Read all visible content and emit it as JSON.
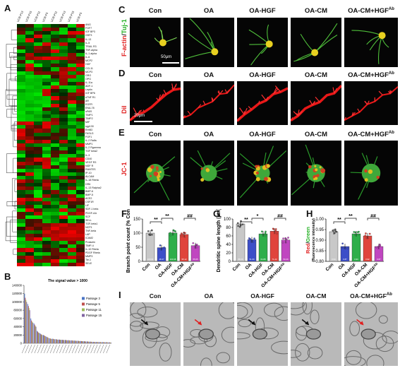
{
  "panels": {
    "A": "A",
    "B": "B",
    "C": "C",
    "D": "D",
    "E": "E",
    "F": "F",
    "G": "G",
    "H": "H",
    "I": "I"
  },
  "heatmap": {
    "columns": [
      "UCB-P13",
      "UCB-P15",
      "UCB-P11",
      "UCB-P5",
      "UCB-P11",
      "UCB-P13",
      "UCB-P15",
      "UCB-P5"
    ],
    "genes": [
      "ANG",
      "FGF7",
      "IGF BP3",
      "GSF3",
      "IL-13",
      "IL-5",
      "TRAIL R3",
      "TNF-alpha",
      "IL-1 alpha",
      "IL-6",
      "MCP2",
      "HGF",
      "CCL11",
      "MCP3",
      "GRO",
      "OPG",
      "IL-11a",
      "ADF-1",
      "Leptin",
      "IGF BP6",
      "sTNF R1",
      "AR",
      "EGFR",
      "ENA-78",
      "uPAR",
      "TIMP1",
      "TIMP2",
      "MIF",
      "sgp130",
      "ErbB3",
      "FASLG",
      "FGF1",
      "IL-2 Ralfa",
      "MMP1",
      "IL-2 Rgamma",
      "TGF beta2",
      "IL-3",
      "CD40",
      "VEGF R3",
      "NGF R",
      "RANTES",
      "IP-10",
      "ALCAM",
      "IL-18 Rbeta",
      "DR6",
      "IL-13 Ralpha2",
      "BMP-6",
      "BMP-5",
      "ACE2",
      "CSF1R",
      "LIF",
      "SDF-1 beta",
      "PDGF-AA",
      "SCF",
      "SELL",
      "TGF-beta1",
      "NCP1",
      "TNF-beta",
      "LAP",
      "ICAM2",
      "Prolactin",
      "TIMP-4",
      "IL-10 Rbeta",
      "PDGF Rbeta",
      "MMP3",
      "Tie-1",
      "SELE"
    ]
  },
  "chart_data": {
    "type": "bar",
    "title": "The signal value > 1000",
    "ylim": [
      0,
      140000
    ],
    "yticks": [
      0,
      20000,
      40000,
      60000,
      80000,
      100000,
      120000,
      140000
    ],
    "categories": [
      "c1",
      "c2",
      "c3",
      "c4",
      "c5",
      "c6",
      "c7",
      "c8",
      "c9",
      "c10",
      "c11",
      "c12",
      "c13",
      "c14",
      "c15",
      "c16",
      "c17",
      "c18",
      "c19",
      "c20",
      "c21",
      "c22",
      "c23",
      "c24",
      "c25",
      "c26",
      "c27",
      "c28"
    ],
    "series": [
      {
        "name": "Passage 3",
        "color": "#4a74c4",
        "values": [
          120000,
          95000,
          60000,
          48000,
          30000,
          24000,
          20000,
          16000,
          12000,
          11000,
          10000,
          9000,
          8500,
          8000,
          7500,
          7000,
          6500,
          6000,
          5500,
          5000,
          4500,
          4000,
          3500,
          3200,
          3000,
          2800,
          2500,
          2200
        ]
      },
      {
        "name": "Passage 5",
        "color": "#c0504d",
        "values": [
          110000,
          90000,
          55000,
          45000,
          28000,
          22000,
          19000,
          15000,
          11500,
          10500,
          9500,
          8800,
          8200,
          7800,
          7200,
          6800,
          6200,
          5800,
          5200,
          4800,
          4200,
          3800,
          3300,
          3000,
          2800,
          2600,
          2400,
          2000
        ]
      },
      {
        "name": "Passage 11",
        "color": "#9bbb59",
        "values": [
          105000,
          85000,
          52000,
          42000,
          26000,
          21000,
          18000,
          14000,
          11000,
          10000,
          9000,
          8500,
          8000,
          7500,
          7000,
          6500,
          6000,
          5500,
          5000,
          4500,
          4000,
          3600,
          3100,
          2900,
          2700,
          2500,
          2300,
          1900
        ]
      },
      {
        "name": "Passage 15",
        "color": "#8064a2",
        "values": [
          100000,
          80000,
          50000,
          40000,
          25000,
          20000,
          17000,
          13000,
          10500,
          9500,
          8700,
          8200,
          7700,
          7200,
          6700,
          6300,
          5800,
          5300,
          4800,
          4300,
          3800,
          3400,
          3000,
          2800,
          2600,
          2400,
          2200,
          1800
        ]
      }
    ]
  },
  "conditions": [
    "Con",
    "OA",
    "OA-HGF",
    "OA-CM",
    "OA-CM+HGF"
  ],
  "ab_superscript": "Ab",
  "rows": {
    "C": {
      "label_parts": [
        "F-actin",
        "/",
        "Tuj-1"
      ],
      "colors": [
        "#e02020",
        "#111",
        "#22b022"
      ],
      "scale": "50μm"
    },
    "D": {
      "label": "DiI",
      "color": "#e02020",
      "scale": "20μm"
    },
    "E": {
      "label": "JC-1",
      "color": "#e02020"
    }
  },
  "plots": {
    "F": {
      "ylabel": "Branch point count (% Con)",
      "ylim": [
        0,
        150
      ],
      "yticks": [
        0,
        50,
        100,
        150
      ],
      "values": [
        100.0,
        48.47,
        100.48,
        95.12,
        55.65
      ],
      "sig": [
        {
          "text": "**",
          "from": 0,
          "to": 1,
          "level": 1
        },
        {
          "text": "**",
          "from": 1,
          "to": 2,
          "level": 0
        },
        {
          "text": "##",
          "from": 3,
          "to": 4,
          "level": 0
        }
      ]
    },
    "G": {
      "ylabel": "Dendritic spine length (μm)",
      "ylim": [
        0,
        100
      ],
      "yticks": [
        0,
        20,
        40,
        60,
        80,
        100
      ],
      "values": [
        88.26,
        51.09,
        64.88,
        71.22,
        50.29
      ],
      "sig": [
        {
          "text": "**",
          "from": 0,
          "to": 1,
          "level": 1
        },
        {
          "text": "*",
          "from": 1,
          "to": 2,
          "level": 0
        },
        {
          "text": "##",
          "from": 3,
          "to": 4,
          "level": 0
        }
      ]
    },
    "H": {
      "ylabel_red": "Red",
      "ylabel_slash": "/",
      "ylabel_green": "Green",
      "ylabel_sub": "(fluorescence intensity)",
      "ylim": [
        0.8,
        1.0
      ],
      "yticks": [
        0.8,
        0.85,
        0.9,
        0.95,
        1.0
      ],
      "values": [
        0.94,
        0.87,
        0.93,
        0.92,
        0.87
      ],
      "sig": [
        {
          "text": "**",
          "from": 0,
          "to": 1,
          "level": 1
        },
        {
          "text": "**",
          "from": 1,
          "to": 2,
          "level": 0
        },
        {
          "text": "##",
          "from": 3,
          "to": 4,
          "level": 0
        }
      ]
    }
  },
  "bar_colors": [
    "#c8c8c8",
    "#3c4ec8",
    "#2eae4a",
    "#e0443c",
    "#c046c0"
  ]
}
